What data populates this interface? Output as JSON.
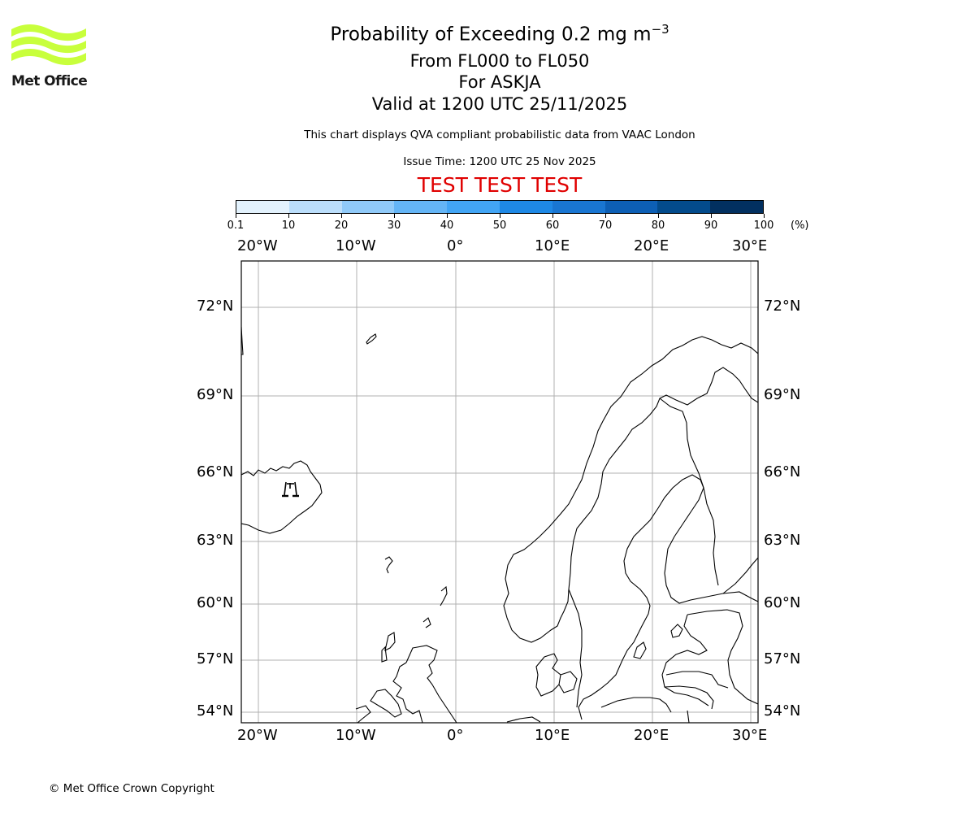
{
  "logo": {
    "text": "Met Office",
    "color": "#c8ff3c"
  },
  "header": {
    "title": "Probability of Exceeding 0.2 mg m",
    "title_superscript": "−3",
    "levels": "From FL000 to FL050",
    "volcano": "For ASKJA",
    "valid": "Valid at 1200 UTC 25/11/2025",
    "subtitle": "This chart displays QVA compliant probabilistic data from VAAC London",
    "issue_time": "Issue Time: 1200 UTC 25 Nov 2025",
    "test_banner": "TEST TEST TEST",
    "test_color": "#e00000"
  },
  "colorbar": {
    "ticks": [
      "0.1",
      "10",
      "20",
      "30",
      "40",
      "50",
      "60",
      "70",
      "80",
      "90",
      "100"
    ],
    "unit": "(%)",
    "colors": [
      "#e3f2fd",
      "#bbdefb",
      "#90caf9",
      "#64b5f6",
      "#42a5f5",
      "#1e88e5",
      "#1976d2",
      "#0d5fb5",
      "#034b8c",
      "#023060"
    ]
  },
  "map": {
    "lon_labels": [
      "20°W",
      "10°W",
      "0°",
      "10°E",
      "20°E",
      "30°E"
    ],
    "lat_labels": [
      "72°N",
      "69°N",
      "66°N",
      "63°N",
      "60°N",
      "57°N",
      "54°N"
    ],
    "volcano_marker": "volcano-icon",
    "volcano_name": "ASKJA"
  },
  "footer": {
    "copyright": "© Met Office Crown Copyright"
  },
  "chart_data": {
    "type": "heatmap",
    "title": "Probability of Exceeding 0.2 mg m−3",
    "subtitle": "From FL000 to FL050 — For ASKJA — Valid at 1200 UTC 25/11/2025",
    "colorbar": {
      "bounds": [
        0.1,
        10,
        20,
        30,
        40,
        50,
        60,
        70,
        80,
        90,
        100
      ],
      "unit": "%"
    },
    "x_ticks": [
      "20°W",
      "10°W",
      "0°",
      "10°E",
      "20°E",
      "30°E"
    ],
    "y_ticks": [
      "72°N",
      "69°N",
      "66°N",
      "63°N",
      "60°N",
      "57°N",
      "54°N"
    ],
    "xlim": [
      -21.7,
      30.7
    ],
    "ylim": [
      53.5,
      73.5
    ],
    "grid": true,
    "values": [],
    "annotations": [
      "Volcano marker at Askja, Iceland (~16.8°W, 65.0°N)",
      "TEST TEST TEST"
    ]
  }
}
